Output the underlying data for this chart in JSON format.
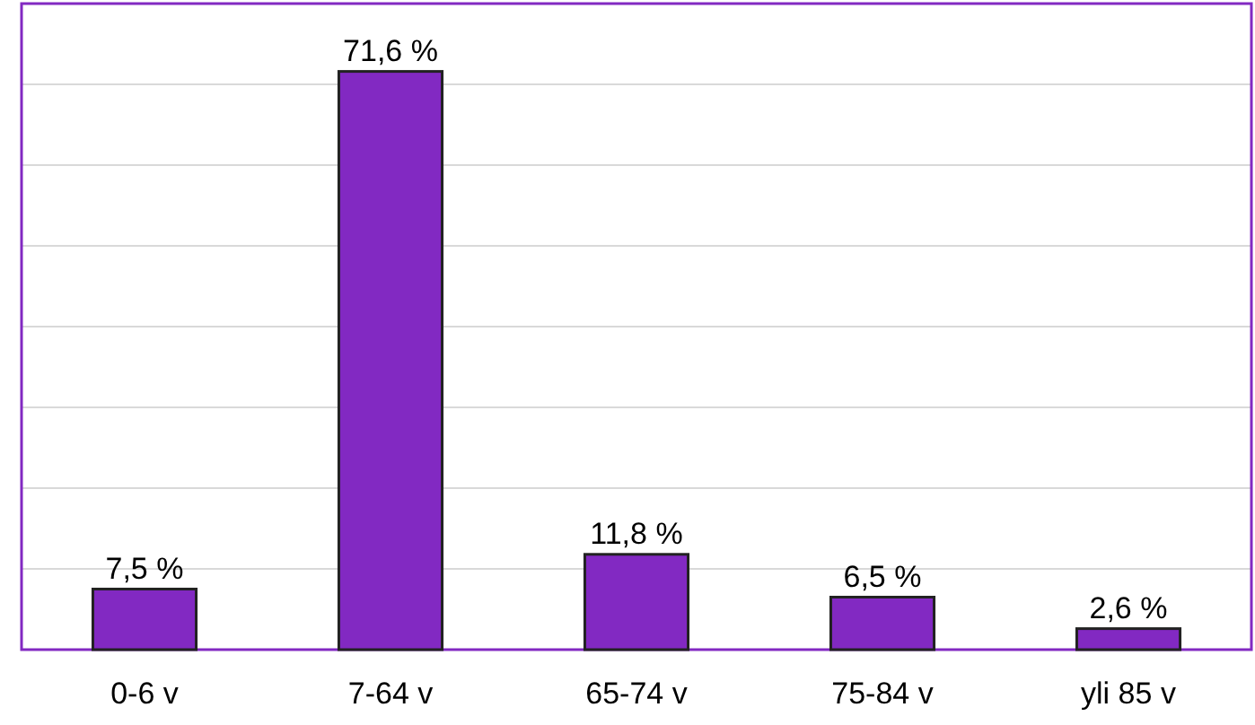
{
  "chart_data": {
    "type": "bar",
    "categories": [
      "0-6 v",
      "7-64 v",
      "65-74 v",
      "75-84 v",
      "yli 85 v"
    ],
    "values": [
      7.5,
      71.6,
      11.8,
      6.5,
      2.6
    ],
    "value_labels": [
      "7,5 %",
      "71,6 %",
      "11,8 %",
      "6,5 %",
      "2,6 %"
    ],
    "color": "#8229c2",
    "ylim": [
      0,
      80
    ],
    "yticks": [
      {
        "value": 0,
        "label": null
      },
      {
        "value": 10,
        "label": null
      },
      {
        "value": 20,
        "label": null
      },
      {
        "value": 30,
        "label": null
      },
      {
        "value": 40,
        "label": null
      },
      {
        "value": 50,
        "label": null
      },
      {
        "value": 60,
        "label": null
      },
      {
        "value": 70,
        "label": null
      },
      {
        "value": 80,
        "label": null
      }
    ],
    "tick_labels": "x",
    "grid": "y"
  }
}
